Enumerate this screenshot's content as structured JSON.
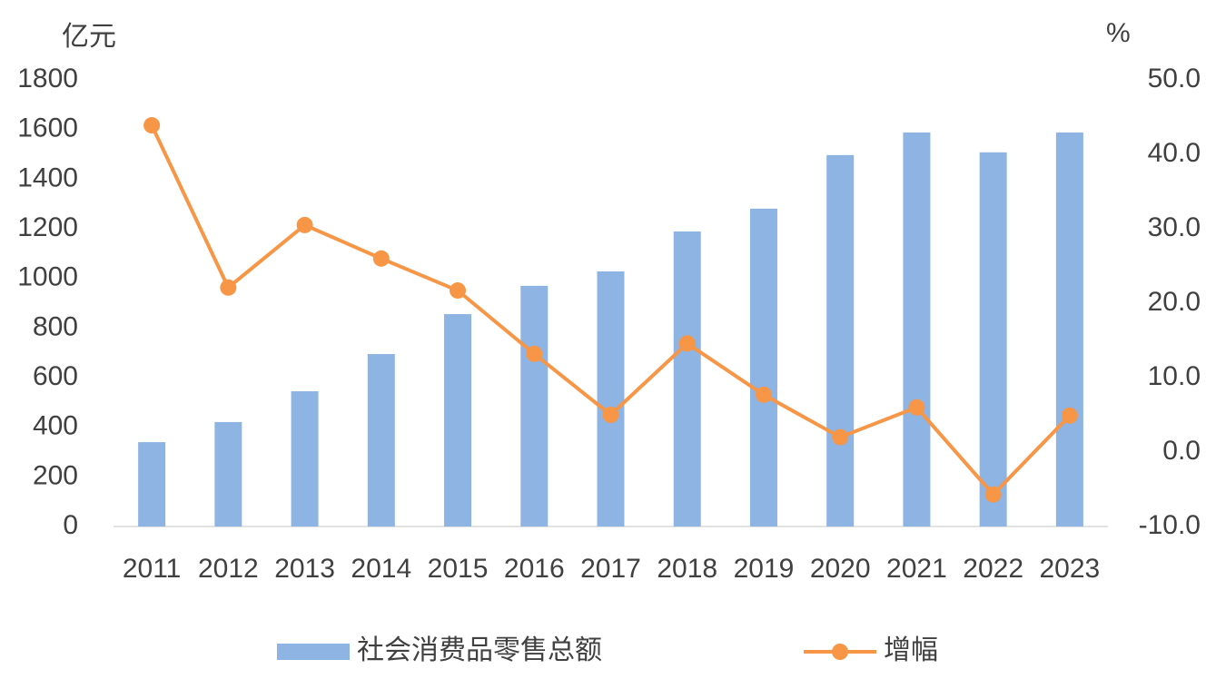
{
  "chart_data": {
    "type": "bar-line",
    "ylabel": "亿元",
    "y2label": "%",
    "categories": [
      "2011",
      "2012",
      "2013",
      "2014",
      "2015",
      "2016",
      "2017",
      "2018",
      "2019",
      "2020",
      "2021",
      "2022",
      "2023"
    ],
    "series": [
      {
        "name": "社会消费品零售总额",
        "color": "#8eb4e3",
        "type": "bar",
        "values": [
          340,
          421,
          545,
          695,
          856,
          970,
          1028,
          1189,
          1281,
          1497,
          1588,
          1508,
          1588
        ]
      },
      {
        "name": "增幅",
        "color": "#f79646",
        "type": "line",
        "axis": "y2",
        "values": [
          43.9,
          22.1,
          30.5,
          26.0,
          21.7,
          13.2,
          5.0,
          14.6,
          7.7,
          2.0,
          6.0,
          -5.7,
          4.9
        ]
      }
    ],
    "ylim": [
      0,
      1800
    ],
    "yticks": [
      0,
      200,
      400,
      600,
      800,
      1000,
      1200,
      1400,
      1600,
      1800
    ],
    "y2lim": [
      -10,
      50
    ],
    "y2ticks": [
      {
        "value": -10,
        "label": "-10.0"
      },
      {
        "value": 0,
        "label": "0.0"
      },
      {
        "value": 10,
        "label": "10.0"
      },
      {
        "value": 20,
        "label": "20.0"
      },
      {
        "value": 30,
        "label": "30.0"
      },
      {
        "value": 40,
        "label": "40.0"
      },
      {
        "value": 50,
        "label": "50.0"
      }
    ],
    "grid": false
  }
}
